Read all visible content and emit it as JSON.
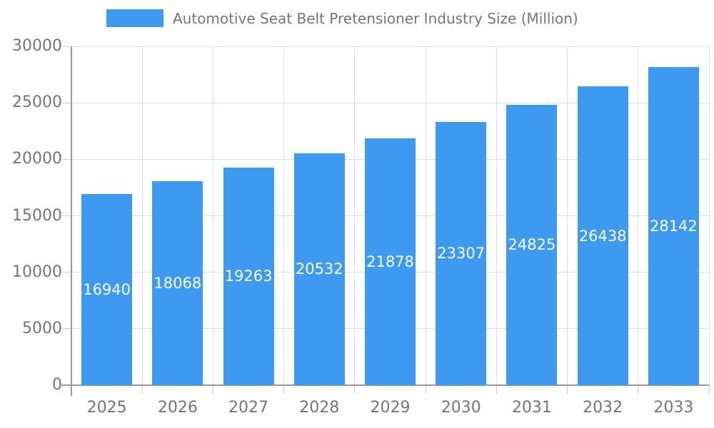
{
  "chart_data": {
    "type": "bar",
    "title": "Automotive Seat Belt Pretensioner Industry Size (Million)",
    "categories": [
      "2025",
      "2026",
      "2027",
      "2028",
      "2029",
      "2030",
      "2031",
      "2032",
      "2033"
    ],
    "values": [
      16940,
      18068,
      19263,
      20532,
      21878,
      23307,
      24825,
      26438,
      28142
    ],
    "xlabel": "",
    "ylabel": "",
    "ylim": [
      0,
      30000
    ],
    "yticks": [
      0,
      5000,
      10000,
      15000,
      20000,
      25000,
      30000
    ],
    "grid": true,
    "legend_position": "top",
    "value_label_position": "inside-center",
    "colors": {
      "bar": "#3D9AF0",
      "value_label": "#FFFFFF",
      "tick_label": "#757575",
      "legend_text": "#757575",
      "gridline": "#DDDDDD",
      "tick_mark": "#CCCCCC",
      "axis": "#999999",
      "background": "#FFFFFF"
    }
  }
}
